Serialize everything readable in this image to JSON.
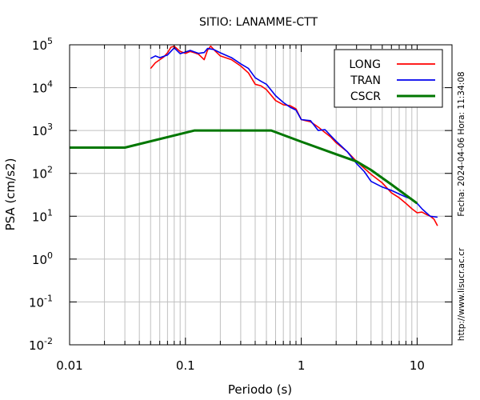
{
  "chart_data": {
    "type": "line",
    "title": "SITIO: LANAMME-CTT",
    "xlabel": "Periodo (s)",
    "ylabel": "PSA (cm/s2)",
    "x_scale": "log",
    "y_scale": "log",
    "xlim": [
      0.01,
      20
    ],
    "ylim": [
      0.01,
      100000
    ],
    "grid": true,
    "legend_position": "top-right",
    "x_ticks": [
      {
        "value": 0.01,
        "label": "0.01"
      },
      {
        "value": 0.1,
        "label": "0.1"
      },
      {
        "value": 1,
        "label": "1"
      },
      {
        "value": 10,
        "label": "10"
      }
    ],
    "y_ticks": [
      {
        "value": 0.01,
        "base": "10",
        "exp": "-2"
      },
      {
        "value": 0.1,
        "base": "10",
        "exp": "-1"
      },
      {
        "value": 1,
        "base": "10",
        "exp": "0"
      },
      {
        "value": 10,
        "base": "10",
        "exp": "1"
      },
      {
        "value": 100,
        "base": "10",
        "exp": "2"
      },
      {
        "value": 1000,
        "base": "10",
        "exp": "3"
      },
      {
        "value": 10000,
        "base": "10",
        "exp": "4"
      },
      {
        "value": 100000,
        "base": "10",
        "exp": "5"
      }
    ],
    "series": [
      {
        "name": "LONG",
        "color": "#ff0000",
        "points": [
          [
            0.05,
            28000
          ],
          [
            0.055,
            38000
          ],
          [
            0.06,
            45000
          ],
          [
            0.065,
            52000
          ],
          [
            0.07,
            65000
          ],
          [
            0.075,
            88000
          ],
          [
            0.08,
            92000
          ],
          [
            0.09,
            70000
          ],
          [
            0.1,
            63000
          ],
          [
            0.11,
            70000
          ],
          [
            0.12,
            65000
          ],
          [
            0.13,
            60000
          ],
          [
            0.145,
            45000
          ],
          [
            0.155,
            75000
          ],
          [
            0.165,
            93000
          ],
          [
            0.18,
            72000
          ],
          [
            0.2,
            55000
          ],
          [
            0.25,
            45000
          ],
          [
            0.3,
            32000
          ],
          [
            0.35,
            22000
          ],
          [
            0.4,
            12000
          ],
          [
            0.45,
            11000
          ],
          [
            0.5,
            9000
          ],
          [
            0.6,
            5000
          ],
          [
            0.7,
            4000
          ],
          [
            0.8,
            3800
          ],
          [
            0.9,
            3200
          ],
          [
            1.0,
            1800
          ],
          [
            1.2,
            1600
          ],
          [
            1.4,
            1200
          ],
          [
            1.6,
            900
          ],
          [
            1.8,
            700
          ],
          [
            2.0,
            520
          ],
          [
            2.5,
            320
          ],
          [
            3.0,
            190
          ],
          [
            4.0,
            95
          ],
          [
            5.0,
            60
          ],
          [
            6.0,
            35
          ],
          [
            7.0,
            27
          ],
          [
            8.0,
            20
          ],
          [
            9.0,
            15
          ],
          [
            10.0,
            12
          ],
          [
            11.0,
            12.5
          ],
          [
            12.0,
            11
          ],
          [
            13.0,
            10
          ],
          [
            14.0,
            8.5
          ],
          [
            15.0,
            6
          ]
        ]
      },
      {
        "name": "TRAN",
        "color": "#0000ee",
        "points": [
          [
            0.05,
            48000
          ],
          [
            0.055,
            55000
          ],
          [
            0.06,
            50000
          ],
          [
            0.07,
            58000
          ],
          [
            0.08,
            85000
          ],
          [
            0.09,
            62000
          ],
          [
            0.1,
            68000
          ],
          [
            0.11,
            74000
          ],
          [
            0.12,
            68000
          ],
          [
            0.13,
            63000
          ],
          [
            0.145,
            66000
          ],
          [
            0.155,
            82000
          ],
          [
            0.175,
            78000
          ],
          [
            0.2,
            65000
          ],
          [
            0.25,
            50000
          ],
          [
            0.3,
            36000
          ],
          [
            0.35,
            28000
          ],
          [
            0.4,
            17000
          ],
          [
            0.45,
            14000
          ],
          [
            0.5,
            12000
          ],
          [
            0.6,
            6500
          ],
          [
            0.7,
            4500
          ],
          [
            0.8,
            3500
          ],
          [
            0.9,
            3000
          ],
          [
            1.0,
            1800
          ],
          [
            1.2,
            1700
          ],
          [
            1.4,
            1000
          ],
          [
            1.6,
            1050
          ],
          [
            1.8,
            750
          ],
          [
            2.0,
            560
          ],
          [
            2.5,
            320
          ],
          [
            3.0,
            170
          ],
          [
            3.5,
            110
          ],
          [
            4.0,
            65
          ],
          [
            5.0,
            48
          ],
          [
            6.0,
            40
          ],
          [
            7.0,
            33
          ],
          [
            8.0,
            28
          ],
          [
            9.0,
            25
          ],
          [
            10.0,
            20
          ],
          [
            11.0,
            15
          ],
          [
            12.0,
            12
          ],
          [
            13.0,
            10
          ],
          [
            15.0,
            9.5
          ]
        ]
      },
      {
        "name": "CSCR",
        "color": "#007700",
        "points": [
          [
            0.01,
            400
          ],
          [
            0.03,
            400
          ],
          [
            0.12,
            1000
          ],
          [
            0.55,
            1000
          ],
          [
            1.0,
            550
          ],
          [
            2.0,
            280
          ],
          [
            3.0,
            190
          ],
          [
            4.0,
            120
          ],
          [
            6.0,
            55
          ],
          [
            10.0,
            20
          ]
        ]
      }
    ],
    "side_text": {
      "timestamp": "Fecha: 2024-04-06 Hora: 11:34:08",
      "url": "http://www.lisucr.ac.cr"
    }
  }
}
